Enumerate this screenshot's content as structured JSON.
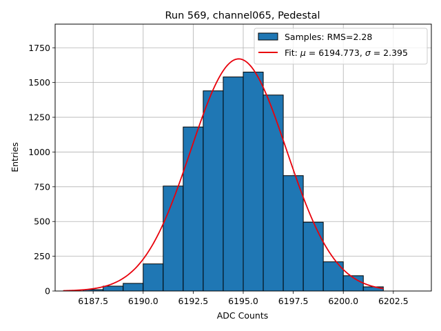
{
  "chart_data": {
    "type": "bar",
    "title": "Run 569, channel065, Pedestal",
    "xlabel": "ADC Counts",
    "ylabel": "Entries",
    "xlim": [
      6185.6,
      6204.4
    ],
    "ylim": [
      0,
      1920
    ],
    "xticks": [
      6187.5,
      6190.0,
      6192.5,
      6195.0,
      6197.5,
      6200.0,
      6202.5
    ],
    "xtick_labels": [
      "6187.5",
      "6190.0",
      "6192.5",
      "6195.0",
      "6197.5",
      "6200.0",
      "6202.5"
    ],
    "yticks": [
      0,
      250,
      500,
      750,
      1000,
      1250,
      1500,
      1750
    ],
    "ytick_labels": [
      "0",
      "250",
      "500",
      "750",
      "1000",
      "1250",
      "1500",
      "1750"
    ],
    "grid": true,
    "legend_position": "top-right",
    "colors": {
      "bar": "#1f77b4",
      "edge": "#000000",
      "fit": "#e8000b",
      "grid": "#b0b0b0"
    },
    "histogram": {
      "name": "Samples: RMS=2.28",
      "bin_edges": [
        6187,
        6188,
        6189,
        6190,
        6191,
        6192,
        6193,
        6194,
        6195,
        6196,
        6197,
        6198,
        6199,
        6200,
        6201,
        6202
      ],
      "values": [
        10,
        35,
        55,
        195,
        755,
        1180,
        1440,
        1540,
        1575,
        1410,
        830,
        495,
        210,
        110,
        30
      ]
    },
    "fit": {
      "name": "Fit: μ = 6194.773, σ = 2.395",
      "label_prefix": "Fit: ",
      "mu_symbol": "μ",
      "mu_text": " = 6194.773, ",
      "sigma_symbol": "σ",
      "sigma_text": " = 2.395",
      "mu": 6194.773,
      "sigma": 2.395,
      "amplitude": 1670,
      "x_range": [
        6186,
        6202
      ]
    }
  }
}
